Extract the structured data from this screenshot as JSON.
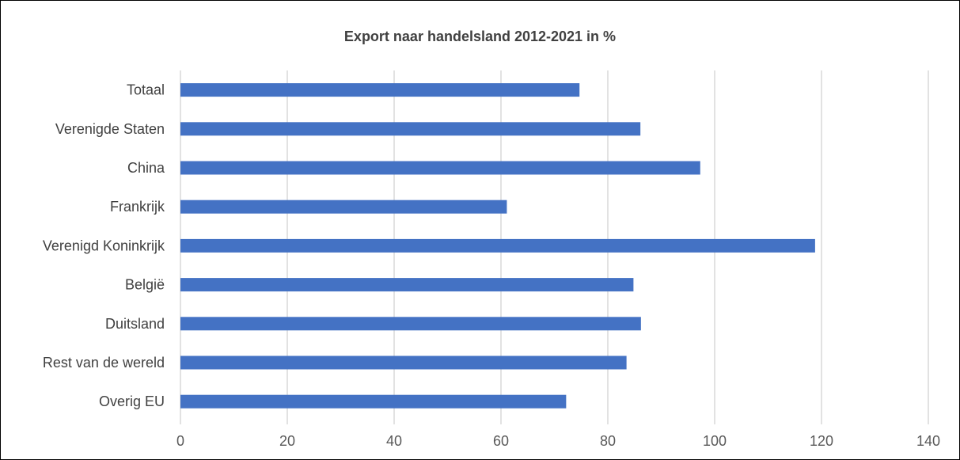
{
  "chart_data": {
    "type": "bar",
    "orientation": "horizontal",
    "title": "Export naar handelsland 2012-2021 in %",
    "xlabel": "",
    "ylabel": "",
    "categories": [
      "Totaal",
      "Verenigde Staten",
      "China",
      "Frankrijk",
      "Verenigd Koninkrijk",
      "België",
      "Duitsland",
      "Rest van de wereld",
      "Overig EU"
    ],
    "values": [
      74.7,
      86.1,
      97.3,
      61.1,
      118.8,
      84.8,
      86.2,
      83.5,
      72.2
    ],
    "xlim": [
      0,
      140
    ],
    "ticks": [
      "0",
      "20",
      "40",
      "60",
      "80",
      "100",
      "120",
      "140"
    ],
    "grid": "vertical",
    "legend": "none",
    "bar_color": "#4472C4",
    "grid_color": "#D9D9D9"
  }
}
